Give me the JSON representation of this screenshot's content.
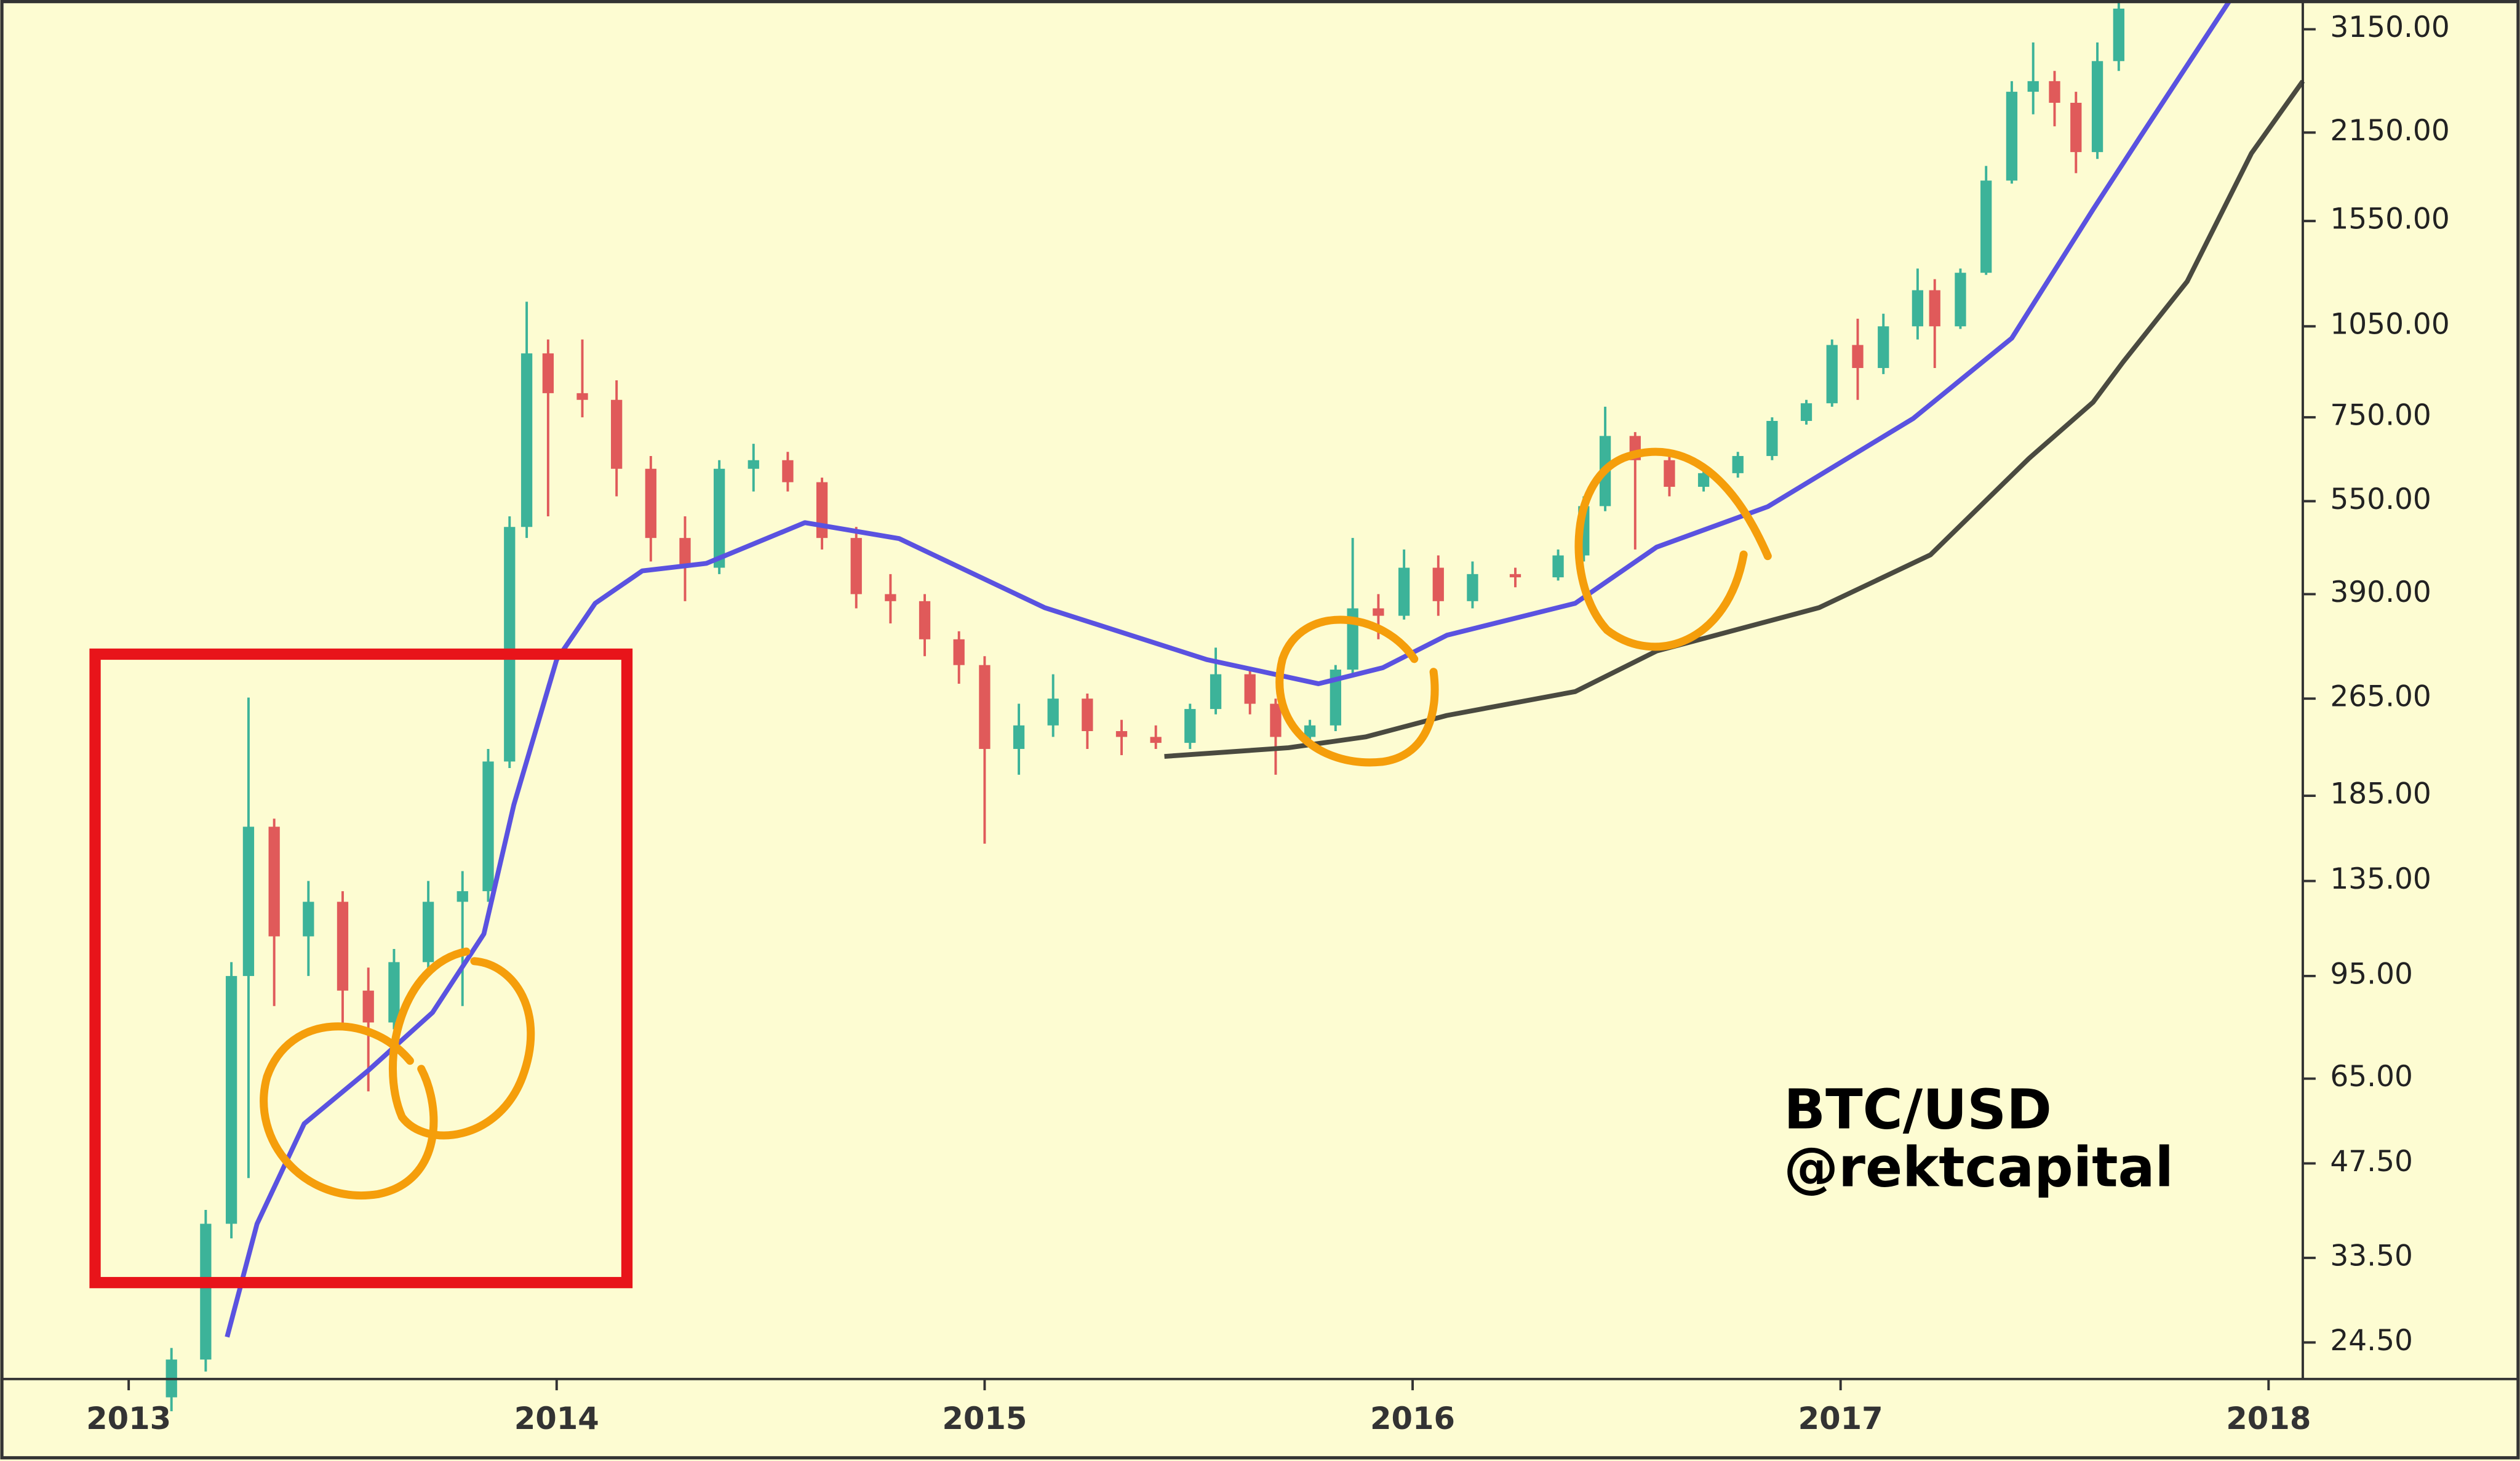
{
  "chart_data": {
    "type": "candlestick",
    "log_y": true,
    "annotations": [
      "BTC/USD",
      "@rektcapital"
    ],
    "up_color": "#3cb399",
    "down_color": "#e05a5a",
    "xlim": [
      2012.7,
      2018.08
    ],
    "xticks": [
      2013,
      2014,
      2015,
      2016,
      2017,
      2018
    ],
    "ylim": [
      21.4,
      3510
    ],
    "yticks": [
      {
        "value": 3150,
        "label": "3150.00"
      },
      {
        "value": 2150,
        "label": "2150.00"
      },
      {
        "value": 1550,
        "label": "1550.00"
      },
      {
        "value": 1050,
        "label": "1050.00"
      },
      {
        "value": 750,
        "label": "750.00"
      },
      {
        "value": 550,
        "label": "550.00"
      },
      {
        "value": 390,
        "label": "390.00"
      },
      {
        "value": 265,
        "label": "265.00"
      },
      {
        "value": 185,
        "label": "185.00"
      },
      {
        "value": 135,
        "label": "135.00"
      },
      {
        "value": 95,
        "label": "95.00"
      },
      {
        "value": 65,
        "label": "65.00"
      },
      {
        "value": 47.5,
        "label": "47.50"
      },
      {
        "value": 33.5,
        "label": "33.50"
      },
      {
        "value": 24.5,
        "label": "24.50"
      }
    ],
    "x": [
      2013.1,
      2013.18,
      2013.24,
      2013.28,
      2013.34,
      2013.42,
      2013.5,
      2013.56,
      2013.62,
      2013.7,
      2013.78,
      2013.84,
      2013.89,
      2013.93,
      2013.98,
      2014.06,
      2014.14,
      2014.22,
      2014.3,
      2014.38,
      2014.46,
      2014.54,
      2014.62,
      2014.7,
      2014.78,
      2014.86,
      2014.94,
      2015.0,
      2015.08,
      2015.16,
      2015.24,
      2015.32,
      2015.4,
      2015.48,
      2015.54,
      2015.62,
      2015.68,
      2015.76,
      2015.82,
      2015.86,
      2015.92,
      2015.98,
      2016.06,
      2016.14,
      2016.24,
      2016.34,
      2016.4,
      2016.45,
      2016.52,
      2016.6,
      2016.68,
      2016.76,
      2016.84,
      2016.92,
      2016.98,
      2017.04,
      2017.1,
      2017.18,
      2017.22,
      2017.28,
      2017.34,
      2017.4,
      2017.45,
      2017.5,
      2017.55,
      2017.6,
      2017.65
    ],
    "open": [
      20,
      23,
      38,
      95,
      165,
      110,
      125,
      90,
      80,
      100,
      125,
      130,
      210,
      500,
      950,
      820,
      800,
      620,
      480,
      430,
      620,
      640,
      590,
      480,
      390,
      380,
      330,
      300,
      220,
      240,
      265,
      235,
      230,
      225,
      255,
      290,
      260,
      230,
      240,
      295,
      370,
      360,
      430,
      380,
      420,
      415,
      450,
      540,
      700,
      640,
      580,
      610,
      650,
      740,
      790,
      980,
      900,
      1050,
      1200,
      1050,
      1280,
      1800,
      2500,
      2600,
      2400,
      2000,
      2800
    ],
    "high": [
      24,
      40,
      100,
      266,
      170,
      135,
      130,
      98,
      105,
      135,
      140,
      220,
      520,
      1150,
      1000,
      1000,
      860,
      650,
      520,
      640,
      680,
      660,
      600,
      500,
      420,
      390,
      340,
      310,
      260,
      290,
      270,
      245,
      240,
      260,
      320,
      295,
      265,
      245,
      300,
      480,
      390,
      460,
      450,
      440,
      430,
      460,
      560,
      780,
      710,
      650,
      620,
      660,
      750,
      800,
      1000,
      1080,
      1100,
      1300,
      1250,
      1300,
      1900,
      2600,
      3000,
      2700,
      2500,
      3000,
      3600
    ],
    "low": [
      19,
      22,
      36,
      45,
      85,
      95,
      78,
      62,
      78,
      98,
      85,
      125,
      205,
      480,
      520,
      750,
      560,
      440,
      380,
      420,
      570,
      570,
      460,
      370,
      350,
      310,
      280,
      155,
      200,
      230,
      220,
      215,
      220,
      220,
      250,
      250,
      200,
      225,
      235,
      290,
      330,
      355,
      360,
      370,
      400,
      410,
      440,
      530,
      460,
      560,
      570,
      600,
      640,
      730,
      780,
      800,
      880,
      1000,
      900,
      1040,
      1270,
      1780,
      2300,
      2200,
      1850,
      1950,
      2700
    ],
    "close": [
      23,
      38,
      95,
      165,
      110,
      125,
      90,
      80,
      100,
      125,
      130,
      210,
      500,
      950,
      820,
      800,
      620,
      480,
      430,
      620,
      640,
      590,
      480,
      390,
      380,
      330,
      300,
      220,
      240,
      265,
      235,
      230,
      225,
      255,
      290,
      260,
      230,
      240,
      295,
      370,
      360,
      430,
      380,
      420,
      415,
      450,
      540,
      700,
      640,
      580,
      610,
      650,
      740,
      790,
      980,
      900,
      1050,
      1200,
      1050,
      1280,
      1800,
      2500,
      2600,
      2400,
      2000,
      2800,
      3400
    ],
    "lines": [
      {
        "color": "#5a52e0",
        "x": [
          2013.23,
          2013.3,
          2013.41,
          2013.56,
          2013.71,
          2013.83,
          2013.9,
          2014.0,
          2014.09,
          2014.2,
          2014.35,
          2014.58,
          2014.8,
          2015.14,
          2015.52,
          2015.78,
          2015.93,
          2016.08,
          2016.38,
          2016.57,
          2016.83,
          2017.17,
          2017.4,
          2017.59,
          2017.7,
          2017.91
        ],
        "values": [
          25,
          38,
          55,
          67,
          83,
          111,
          179,
          306,
          377,
          425,
          437,
          508,
          479,
          371,
          306,
          280,
          297,
          335,
          377,
          464,
          539,
          747,
          1005,
          1618,
          2115,
          3510
        ]
      },
      {
        "color": "#4a4a40",
        "x": [
          2015.42,
          2015.71,
          2015.89,
          2016.08,
          2016.38,
          2016.57,
          2016.95,
          2017.21,
          2017.44,
          2017.59,
          2017.66,
          2017.81,
          2017.96,
          2018.08
        ],
        "values": [
          214,
          221,
          230,
          249,
          272,
          316,
          371,
          451,
          644,
          793,
          920,
          1240,
          1991,
          2600
        ]
      }
    ]
  }
}
